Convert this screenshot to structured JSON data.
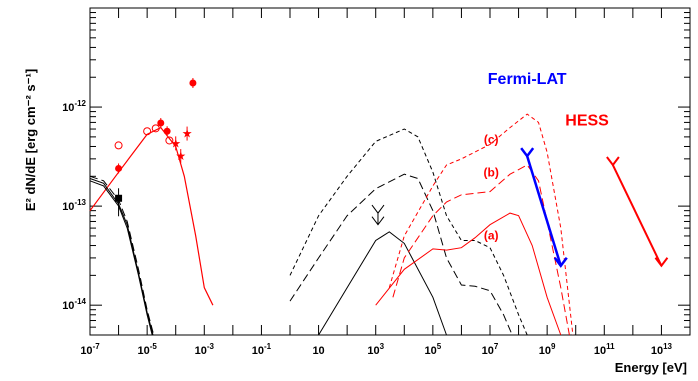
{
  "chart_data": {
    "type": "scatter",
    "title": "",
    "xlabel": "Energy [eV]",
    "ylabel": "E² dN/dE [erg cm⁻² s⁻¹]",
    "xscale": "log",
    "yscale": "log",
    "xlim": [
      1e-07,
      100000000000000.0
    ],
    "ylim": [
      5e-15,
      1e-11
    ],
    "grid": false,
    "x_tick_labels": [
      {
        "exp": -7,
        "text": "10",
        "sup": "-7"
      },
      {
        "exp": -5,
        "text": "10",
        "sup": "-5"
      },
      {
        "exp": -3,
        "text": "10",
        "sup": "-3"
      },
      {
        "exp": -1,
        "text": "10",
        "sup": "-1"
      },
      {
        "exp": 1,
        "text": "10",
        "sup": ""
      },
      {
        "exp": 3,
        "text": "10",
        "sup": "3"
      },
      {
        "exp": 5,
        "text": "10",
        "sup": "5"
      },
      {
        "exp": 7,
        "text": "10",
        "sup": "7"
      },
      {
        "exp": 9,
        "text": "10",
        "sup": "9"
      },
      {
        "exp": 11,
        "text": "10",
        "sup": "11"
      },
      {
        "exp": 13,
        "text": "10",
        "sup": "13"
      }
    ],
    "y_tick_labels": [
      {
        "exp": -14,
        "text": "10",
        "sup": "-14"
      },
      {
        "exp": -13,
        "text": "10",
        "sup": "-13"
      },
      {
        "exp": -12,
        "text": "10",
        "sup": "-12"
      }
    ],
    "annotations": [
      {
        "text": "Fermi-LAT",
        "x": 200000000.0,
        "y": 1.7e-12,
        "color": "#0000ff",
        "size": 16
      },
      {
        "text": "HESS",
        "x": 25000000000.0,
        "y": 6.5e-13,
        "color": "#ff0000",
        "size": 16
      },
      {
        "text": "(c)",
        "x": 11000000.0,
        "y": 4.3e-13,
        "color": "#ff0000",
        "size": 12
      },
      {
        "text": "(b)",
        "x": 11000000.0,
        "y": 2e-13,
        "color": "#ff0000",
        "size": 12
      },
      {
        "text": "(a)",
        "x": 11000000.0,
        "y": 4.6e-14,
        "color": "#ff0000",
        "size": 12
      }
    ],
    "series": [
      {
        "style": "solid",
        "color": "#ff0000",
        "width": 1.2,
        "points": [
          [
            1e-07,
            9e-14
          ],
          [
            1e-06,
            2.2e-13
          ],
          [
            1e-05,
            5.3e-13
          ],
          [
            3e-05,
            6.2e-13
          ],
          [
            0.0001,
            4e-13
          ],
          [
            0.0002,
            2e-13
          ],
          [
            0.0005,
            5e-14
          ],
          [
            0.001,
            1.5e-14
          ],
          [
            0.002,
            1e-14
          ]
        ]
      },
      {
        "style": "solid",
        "color": "#000000",
        "width": 1,
        "points": [
          [
            1e-07,
            1.8e-13
          ],
          [
            3e-07,
            1.6e-13
          ],
          [
            1e-06,
            1e-13
          ],
          [
            2e-06,
            6e-14
          ],
          [
            5e-06,
            2e-14
          ],
          [
            1e-05,
            8e-15
          ],
          [
            1.5e-05,
            5e-15
          ]
        ]
      },
      {
        "style": "dashed",
        "color": "#000000",
        "width": 1,
        "points": [
          [
            1e-07,
            2e-13
          ],
          [
            3e-07,
            1.8e-13
          ],
          [
            1e-06,
            1.15e-13
          ],
          [
            2e-06,
            7e-14
          ],
          [
            5e-06,
            2.3e-14
          ],
          [
            1e-05,
            9e-15
          ],
          [
            1.7e-05,
            5e-15
          ]
        ]
      },
      {
        "style": "solid",
        "color": "#000000",
        "width": 1,
        "points": [
          [
            1e-07,
            1.9e-13
          ],
          [
            3e-07,
            1.7e-13
          ],
          [
            1e-06,
            1.05e-13
          ],
          [
            2e-06,
            6.5e-14
          ],
          [
            5e-06,
            2.1e-14
          ],
          [
            1e-05,
            8.5e-15
          ],
          [
            1.6e-05,
            5e-15
          ]
        ]
      },
      {
        "style": "solid",
        "color": "#000000",
        "width": 1,
        "points": [
          [
            10,
            5e-15
          ],
          [
            100,
            1.5e-14
          ],
          [
            1000,
            4.5e-14
          ],
          [
            3000.0,
            5.5e-14
          ],
          [
            10000.0,
            4.2e-14
          ],
          [
            100000.0,
            1.2e-14
          ],
          [
            300000.0,
            5e-15
          ]
        ]
      },
      {
        "style": "dashed",
        "color": "#000000",
        "width": 1,
        "points": [
          [
            1,
            1.1e-14
          ],
          [
            10,
            3e-14
          ],
          [
            100,
            8e-14
          ],
          [
            1000,
            1.5e-13
          ],
          [
            10000.0,
            2.1e-13
          ],
          [
            30000.0,
            1.9e-13
          ],
          [
            100000.0,
            9e-14
          ],
          [
            300000.0,
            3e-14
          ],
          [
            1000000.0,
            1.6e-14
          ],
          [
            3000000.0,
            1.55e-14
          ],
          [
            10000000.0,
            1.4e-14
          ],
          [
            30000000.0,
            8e-15
          ],
          [
            60000000.0,
            5e-15
          ]
        ]
      },
      {
        "style": "dotted",
        "color": "#000000",
        "width": 1,
        "points": [
          [
            1,
            2e-14
          ],
          [
            10,
            8e-14
          ],
          [
            100,
            2e-13
          ],
          [
            1000,
            4.5e-13
          ],
          [
            10000.0,
            6e-13
          ],
          [
            30000.0,
            5e-13
          ],
          [
            100000.0,
            2.2e-13
          ],
          [
            300000.0,
            8e-14
          ],
          [
            1000000.0,
            4.5e-14
          ],
          [
            3000000.0,
            4.5e-14
          ],
          [
            10000000.0,
            3.8e-14
          ],
          [
            30000000.0,
            2e-14
          ],
          [
            100000000.0,
            8e-15
          ],
          [
            200000000.0,
            5e-15
          ]
        ]
      },
      {
        "style": "solid",
        "color": "#ff0000",
        "width": 1,
        "points": [
          [
            1000.0,
            1e-14
          ],
          [
            10000.0,
            2.3e-14
          ],
          [
            100000.0,
            3.7e-14
          ],
          [
            300000.0,
            3.6e-14
          ],
          [
            1000000.0,
            3.8e-14
          ],
          [
            3000000.0,
            4.8e-14
          ],
          [
            10000000.0,
            6.5e-14
          ],
          [
            50000000.0,
            8.5e-14
          ],
          [
            100000000.0,
            8e-14
          ],
          [
            300000000.0,
            4e-14
          ],
          [
            1000000000.0,
            1.2e-14
          ],
          [
            3000000000.0,
            5e-15
          ]
        ]
      },
      {
        "style": "dashed",
        "color": "#ff0000",
        "width": 1,
        "points": [
          [
            4000.0,
            1.2e-14
          ],
          [
            10000.0,
            3e-14
          ],
          [
            100000.0,
            8e-14
          ],
          [
            300000.0,
            1.1e-13
          ],
          [
            1000000.0,
            1.3e-13
          ],
          [
            10000000.0,
            1.4e-13
          ],
          [
            50000000.0,
            2.1e-13
          ],
          [
            200000000.0,
            2.6e-13
          ],
          [
            500000000.0,
            1.8e-13
          ],
          [
            1000000000.0,
            7e-14
          ],
          [
            3000000000.0,
            1.5e-14
          ],
          [
            6000000000.0,
            5e-15
          ]
        ]
      },
      {
        "style": "dotted",
        "color": "#ff0000",
        "width": 1,
        "points": [
          [
            3000.0,
            1.5e-14
          ],
          [
            10000.0,
            5e-14
          ],
          [
            100000.0,
            1.6e-13
          ],
          [
            300000.0,
            2.6e-13
          ],
          [
            1000000.0,
            3e-13
          ],
          [
            10000000.0,
            4.2e-13
          ],
          [
            50000000.0,
            6.2e-13
          ],
          [
            200000000.0,
            8.5e-13
          ],
          [
            500000000.0,
            7e-13
          ],
          [
            1000000000.0,
            3.5e-13
          ],
          [
            3000000000.0,
            6e-14
          ],
          [
            8000000000.0,
            5e-15
          ]
        ]
      }
    ],
    "points_filled_red": [
      [
        1e-06,
        2.4e-13
      ],
      [
        3e-05,
        6.9e-13
      ],
      [
        5e-05,
        5.7e-13
      ],
      [
        0.0004,
        1.75e-12
      ]
    ],
    "points_open_red": [
      [
        1e-06,
        4.1e-13
      ],
      [
        1e-05,
        5.7e-13
      ],
      [
        2e-05,
        6.1e-13
      ],
      [
        6e-05,
        4.6e-13
      ]
    ],
    "points_star_red": [
      [
        0.0001,
        4.3e-13
      ],
      [
        0.00015,
        3.2e-13
      ],
      [
        0.00025,
        5.4e-13
      ]
    ],
    "point_square_black": [
      [
        1e-06,
        1.2e-13
      ]
    ],
    "arrows": [
      {
        "x1": 200000000.0,
        "y1": 3.2e-13,
        "x2": 3000000000.0,
        "y2": 2.5e-14,
        "color": "#0000ff",
        "width": 2.5
      },
      {
        "x1": 200000000000.0,
        "y1": 2.6e-13,
        "x2": 10000000000000.0,
        "y2": 2.5e-14,
        "color": "#ff0000",
        "width": 2.0
      },
      {
        "x1": 1200.0,
        "y1": 8.5e-14,
        "x2": 1200.0,
        "y2": 6.5e-14,
        "color": "#000000",
        "width": 1
      }
    ]
  }
}
